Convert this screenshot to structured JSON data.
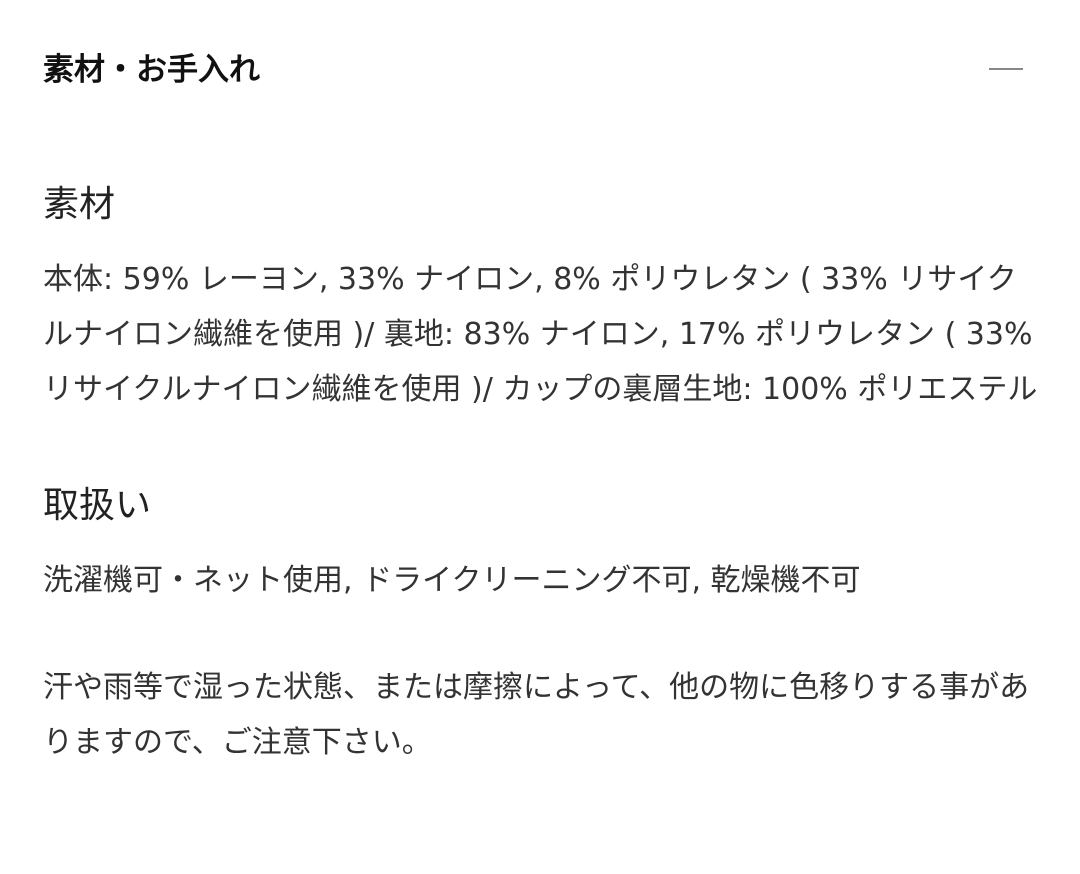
{
  "header": {
    "title": "素材・お手入れ",
    "collapse_icon": "minus-icon"
  },
  "material": {
    "heading": "素材",
    "text": "本体: 59% レーヨン, 33% ナイロン, 8% ポリウレタン ( 33% リサイクルナイロン繊維を使用 )/ 裏地: 83% ナイロン, 17% ポリウレタン ( 33% リサイクルナイロン繊維を使用 )/ カップの裏層生地: 100% ポリエステル"
  },
  "care": {
    "heading": "取扱い",
    "text": "洗濯機可・ネット使用, ドライクリーニング不可, 乾燥機不可",
    "note": "汗や雨等で湿った状態、または摩擦によって、他の物に色移りする事がありますので、ご注意下さい。"
  }
}
